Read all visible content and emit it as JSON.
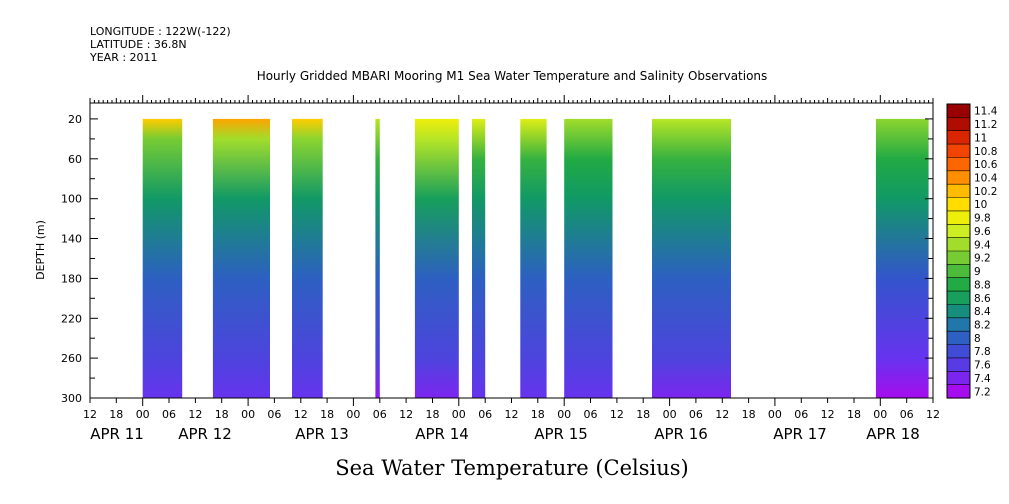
{
  "header": {
    "longitude": "LONGITUDE : 122W(-122)",
    "latitude": "LATITUDE : 36.8N",
    "year": "YEAR : 2011"
  },
  "chart_data": {
    "type": "heatmap",
    "title": "Hourly Gridded MBARI Mooring M1 Sea Water Temperature and Salinity Observations",
    "xlabel": "",
    "ylabel": "DEPTH (m)",
    "colorbar_label": "Sea Water Temperature (Celsius)",
    "x_hour_ticks": [
      "12",
      "18",
      "00",
      "06",
      "12",
      "18",
      "00",
      "06",
      "12",
      "18",
      "00",
      "06",
      "12",
      "18",
      "00",
      "06",
      "12",
      "18",
      "00",
      "06",
      "12",
      "18",
      "00",
      "06",
      "12",
      "18",
      "00",
      "06",
      "12",
      "18",
      "00",
      "06",
      "12"
    ],
    "date_labels": [
      "APR 11",
      "APR 12",
      "APR 13",
      "APR 14",
      "APR 15",
      "APR 16",
      "APR 17",
      "APR 18"
    ],
    "y_ticks": [
      20,
      60,
      100,
      140,
      180,
      220,
      260,
      300
    ],
    "ylim": [
      300,
      4
    ],
    "data_depth_range": [
      20,
      300
    ],
    "colorbar_ticks": [
      "11.4",
      "11.2",
      "11",
      "10.8",
      "10.6",
      "10.4",
      "10.2",
      "10",
      "9.8",
      "9.6",
      "9.4",
      "9.2",
      "9",
      "8.8",
      "8.6",
      "8.4",
      "8.2",
      "8",
      "7.8",
      "7.6",
      "7.4",
      "7.2"
    ],
    "colorscale": [
      {
        "value": 7.2,
        "color": "#bb00ee"
      },
      {
        "value": 7.6,
        "color": "#6633ee"
      },
      {
        "value": 8.0,
        "color": "#3355cc"
      },
      {
        "value": 8.3,
        "color": "#2277aa"
      },
      {
        "value": 8.6,
        "color": "#119966"
      },
      {
        "value": 8.9,
        "color": "#22aa44"
      },
      {
        "value": 9.3,
        "color": "#77cc33"
      },
      {
        "value": 9.7,
        "color": "#ccee22"
      },
      {
        "value": 10.0,
        "color": "#ffee00"
      },
      {
        "value": 10.3,
        "color": "#ffbb00"
      },
      {
        "value": 10.6,
        "color": "#ff7700"
      },
      {
        "value": 11.0,
        "color": "#ee3300"
      },
      {
        "value": 11.4,
        "color": "#990000"
      }
    ],
    "data_segments": [
      {
        "start": "2011-04-11 00:00",
        "end": "2011-04-11 09:00",
        "profile": [
          [
            20,
            10.2
          ],
          [
            40,
            9.3
          ],
          [
            100,
            8.6
          ],
          [
            180,
            8.1
          ],
          [
            260,
            7.8
          ],
          [
            300,
            7.6
          ]
        ]
      },
      {
        "start": "2011-04-11 16:00",
        "end": "2011-04-12 05:00",
        "profile": [
          [
            20,
            10.4
          ],
          [
            40,
            9.5
          ],
          [
            100,
            8.6
          ],
          [
            180,
            8.1
          ],
          [
            260,
            7.8
          ],
          [
            300,
            7.6
          ]
        ]
      },
      {
        "start": "2011-04-12 10:00",
        "end": "2011-04-12 17:00",
        "profile": [
          [
            20,
            10.2
          ],
          [
            40,
            9.4
          ],
          [
            100,
            8.6
          ],
          [
            180,
            8.1
          ],
          [
            260,
            7.8
          ],
          [
            300,
            7.6
          ]
        ]
      },
      {
        "start": "2011-04-13 05:00",
        "end": "2011-04-13 06:00",
        "profile": [
          [
            20,
            9.6
          ],
          [
            60,
            9.0
          ],
          [
            100,
            8.6
          ],
          [
            180,
            8.1
          ],
          [
            260,
            7.8
          ],
          [
            300,
            7.4
          ]
        ]
      },
      {
        "start": "2011-04-13 14:00",
        "end": "2011-04-14 00:00",
        "profile": [
          [
            20,
            9.9
          ],
          [
            40,
            9.6
          ],
          [
            100,
            8.7
          ],
          [
            180,
            8.1
          ],
          [
            260,
            7.8
          ],
          [
            300,
            7.5
          ]
        ]
      },
      {
        "start": "2011-04-14 03:00",
        "end": "2011-04-14 06:00",
        "profile": [
          [
            20,
            9.8
          ],
          [
            60,
            9.0
          ],
          [
            100,
            8.6
          ],
          [
            180,
            8.1
          ],
          [
            260,
            7.8
          ],
          [
            300,
            7.6
          ]
        ]
      },
      {
        "start": "2011-04-14 14:00",
        "end": "2011-04-14 20:00",
        "profile": [
          [
            20,
            9.8
          ],
          [
            60,
            9.0
          ],
          [
            100,
            8.6
          ],
          [
            180,
            8.1
          ],
          [
            260,
            7.8
          ],
          [
            300,
            7.6
          ]
        ]
      },
      {
        "start": "2011-04-15 00:00",
        "end": "2011-04-15 11:00",
        "profile": [
          [
            20,
            9.5
          ],
          [
            60,
            8.9
          ],
          [
            100,
            8.6
          ],
          [
            180,
            8.1
          ],
          [
            260,
            7.8
          ],
          [
            300,
            7.6
          ]
        ]
      },
      {
        "start": "2011-04-15 20:00",
        "end": "2011-04-16 14:00",
        "profile": [
          [
            20,
            9.6
          ],
          [
            60,
            9.0
          ],
          [
            100,
            8.6
          ],
          [
            180,
            8.1
          ],
          [
            260,
            7.8
          ],
          [
            300,
            7.5
          ]
        ]
      },
      {
        "start": "2011-04-17 23:00",
        "end": "2011-04-18 11:00",
        "profile": [
          [
            20,
            9.4
          ],
          [
            60,
            8.9
          ],
          [
            100,
            8.6
          ],
          [
            180,
            8.0
          ],
          [
            260,
            7.6
          ],
          [
            300,
            7.3
          ]
        ]
      }
    ]
  }
}
